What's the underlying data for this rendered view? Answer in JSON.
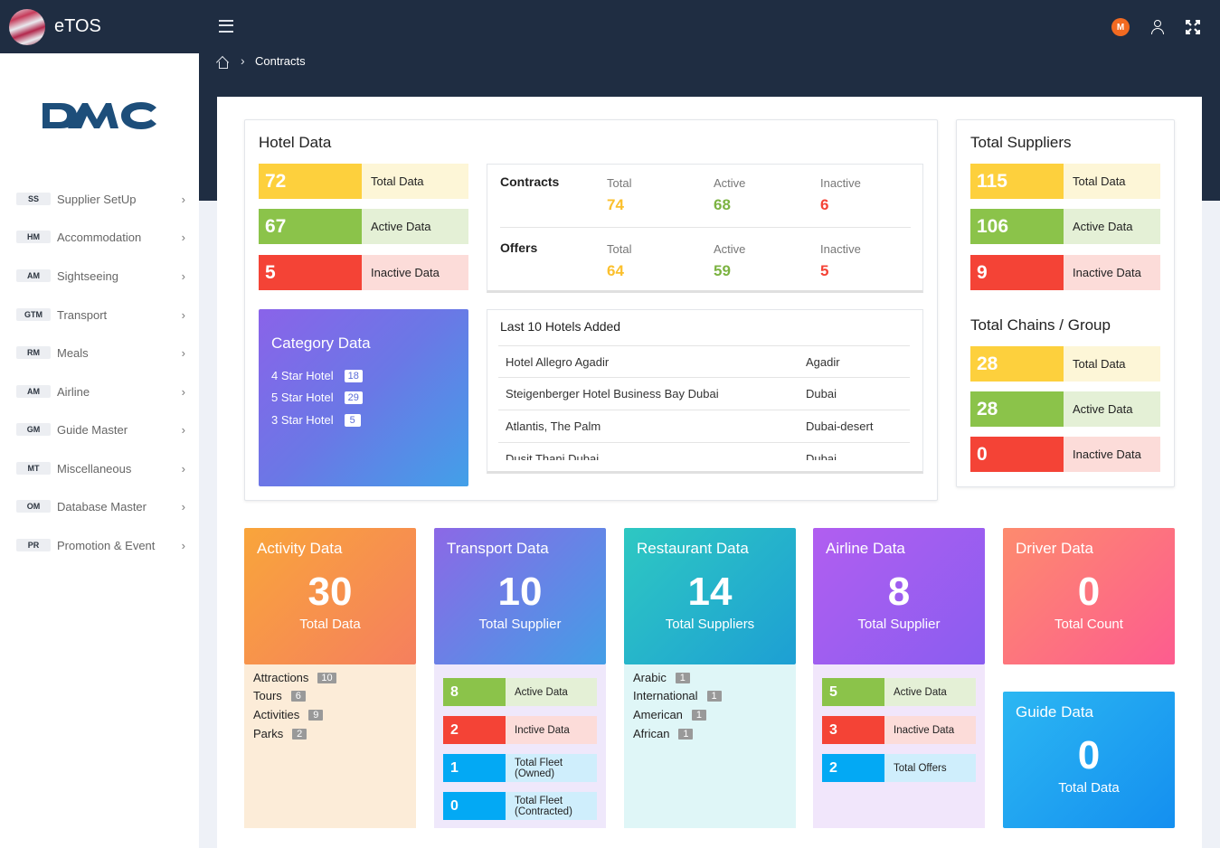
{
  "app": {
    "name": "eTOS"
  },
  "header": {
    "avatar_initial": "M"
  },
  "breadcrumb": {
    "current": "Contracts"
  },
  "sidebar": {
    "logo_text": "DMC",
    "items": [
      {
        "code": "SS",
        "label": "Supplier SetUp"
      },
      {
        "code": "HM",
        "label": "Accommodation"
      },
      {
        "code": "AM",
        "label": "Sightseeing"
      },
      {
        "code": "GTM",
        "label": "Transport"
      },
      {
        "code": "RM",
        "label": "Meals"
      },
      {
        "code": "AM",
        "label": "Airline"
      },
      {
        "code": "GM",
        "label": "Guide Master"
      },
      {
        "code": "MT",
        "label": "Miscellaneous"
      },
      {
        "code": "OM",
        "label": "Database Master"
      },
      {
        "code": "PR",
        "label": "Promotion & Event"
      }
    ]
  },
  "hotel": {
    "title": "Hotel Data",
    "total": {
      "value": "72",
      "label": "Total Data"
    },
    "active": {
      "value": "67",
      "label": "Active Data"
    },
    "inactive": {
      "value": "5",
      "label": "Inactive Data"
    },
    "contracts": {
      "label": "Contracts",
      "total_label": "Total",
      "total": "74",
      "active_label": "Active",
      "active": "68",
      "inactive_label": "Inactive",
      "inactive": "6"
    },
    "offers": {
      "label": "Offers",
      "total_label": "Total",
      "total": "64",
      "active_label": "Active",
      "active": "59",
      "inactive_label": "Inactive",
      "inactive": "5"
    },
    "category": {
      "title": "Category Data",
      "rows": [
        {
          "label": "4 Star Hotel",
          "count": "18"
        },
        {
          "label": "5 Star Hotel",
          "count": "29"
        },
        {
          "label": "3 Star Hotel",
          "count": "5"
        }
      ]
    },
    "last_hotels": {
      "title": "Last 10 Hotels Added",
      "rows": [
        {
          "name": "Hotel Allegro Agadir",
          "city": "Agadir"
        },
        {
          "name": "Steigenberger Hotel Business Bay Dubai",
          "city": "Dubai"
        },
        {
          "name": "Atlantis, The Palm",
          "city": "Dubai-desert"
        },
        {
          "name": "Dusit Thani Dubai",
          "city": "Dubai"
        }
      ]
    }
  },
  "suppliers": {
    "title": "Total Suppliers",
    "total": {
      "value": "115",
      "label": "Total Data"
    },
    "active": {
      "value": "106",
      "label": "Active Data"
    },
    "inactive": {
      "value": "9",
      "label": "Inactive Data"
    }
  },
  "chains": {
    "title": "Total Chains / Group",
    "total": {
      "value": "28",
      "label": "Total Data"
    },
    "active": {
      "value": "28",
      "label": "Active Data"
    },
    "inactive": {
      "value": "0",
      "label": "Inactive Data"
    }
  },
  "activity": {
    "title": "Activity Data",
    "value": "30",
    "sub": "Total Data",
    "rows": [
      {
        "label": "Attractions",
        "count": "10"
      },
      {
        "label": "Tours",
        "count": "6"
      },
      {
        "label": "Activities",
        "count": "9"
      },
      {
        "label": "Parks",
        "count": "2"
      }
    ]
  },
  "transport": {
    "title": "Transport Data",
    "value": "10",
    "sub": "Total Supplier",
    "rows": [
      {
        "value": "8",
        "label": "Active Data"
      },
      {
        "value": "2",
        "label": "Inctive Data"
      },
      {
        "value": "1",
        "label": "Total Fleet (Owned)"
      },
      {
        "value": "0",
        "label": "Total Fleet (Contracted)"
      }
    ]
  },
  "restaurant": {
    "title": "Restaurant Data",
    "value": "14",
    "sub": "Total Suppliers",
    "rows": [
      {
        "label": "Arabic",
        "count": "1"
      },
      {
        "label": "International",
        "count": "1"
      },
      {
        "label": "American",
        "count": "1"
      },
      {
        "label": "African",
        "count": "1"
      }
    ]
  },
  "airline": {
    "title": "Airline Data",
    "value": "8",
    "sub": "Total Supplier",
    "rows": [
      {
        "value": "5",
        "label": "Active Data"
      },
      {
        "value": "3",
        "label": "Inactive Data"
      },
      {
        "value": "2",
        "label": "Total Offers"
      }
    ]
  },
  "driver": {
    "title": "Driver Data",
    "value": "0",
    "sub": "Total Count"
  },
  "guide": {
    "title": "Guide Data",
    "value": "0",
    "sub": "Total Data"
  },
  "colors": {
    "topbar": "#1f2d42",
    "yellow": "#fdd03d",
    "green": "#8bc34a",
    "red": "#f44336",
    "avatar": "#f26a21"
  }
}
